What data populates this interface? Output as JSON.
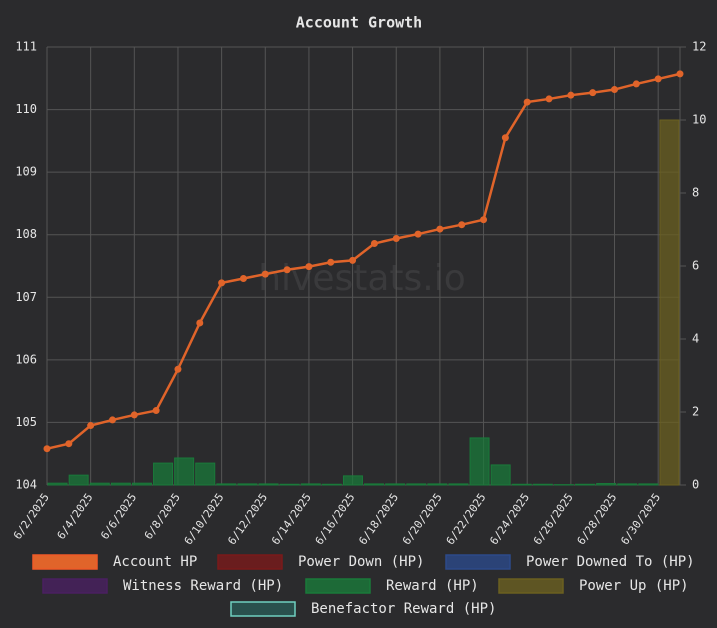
{
  "chart_data": {
    "type": "bar",
    "title": "Account Growth",
    "watermark": "hivestats.io",
    "categories": [
      "6/2/2025",
      null,
      "6/4/2025",
      null,
      "6/6/2025",
      null,
      "6/8/2025",
      null,
      "6/10/2025",
      null,
      "6/12/2025",
      null,
      "6/14/2025",
      null,
      "6/16/2025",
      null,
      "6/18/2025",
      null,
      "6/20/2025",
      null,
      "6/22/2025",
      null,
      "6/24/2025",
      null,
      "6/26/2025",
      null,
      "6/28/2025",
      null,
      "6/30/2025",
      null
    ],
    "ylim": [
      104,
      111
    ],
    "yticks": [
      104,
      105,
      106,
      107,
      108,
      109,
      110,
      111
    ],
    "y2lim": [
      0,
      12
    ],
    "y2ticks": [
      0,
      2,
      4,
      6,
      8,
      10,
      12
    ],
    "grid": true,
    "legend": "bottom",
    "series": [
      {
        "name": "Account HP",
        "type": "line",
        "color": "#e0642a",
        "axis": "y",
        "values": [
          104.58,
          104.66,
          104.95,
          105.04,
          105.12,
          105.19,
          105.85,
          106.59,
          107.23,
          107.3,
          107.37,
          107.44,
          107.49,
          107.56,
          107.59,
          107.86,
          107.94,
          108.01,
          108.09,
          108.16,
          108.24,
          109.55,
          110.12,
          110.17,
          110.23,
          110.27,
          110.32,
          110.41,
          110.49,
          110.57
        ]
      },
      {
        "name": "Power Down (HP)",
        "type": "bar",
        "color": "#7a1a1a",
        "axis": "y2"
      },
      {
        "name": "Power Downed To (HP)",
        "type": "bar",
        "color": "#2c4a8a",
        "axis": "y2"
      },
      {
        "name": "Witness Reward (HP)",
        "type": "bar",
        "color": "#4a2060",
        "axis": "y2"
      },
      {
        "name": "Reward (HP)",
        "type": "bar",
        "color": "#1a7a3a",
        "axis": "y2",
        "values": [
          0.05,
          0.27,
          0.05,
          0.05,
          0.05,
          0.6,
          0.74,
          0.6,
          0.03,
          0.03,
          0.03,
          0.02,
          0.03,
          0.02,
          0.25,
          0.03,
          0.03,
          0.03,
          0.03,
          0.03,
          1.29,
          0.55,
          0.02,
          0.02,
          0.01,
          0.02,
          0.04,
          0.03,
          0.03,
          0
        ]
      },
      {
        "name": "Power Up (HP)",
        "type": "bar",
        "color": "#6b6020",
        "axis": "y2",
        "values": [
          0,
          0,
          0,
          0,
          0,
          0,
          0,
          0,
          0,
          0,
          0,
          0,
          0,
          0,
          0,
          0,
          0,
          0,
          0,
          0,
          0,
          0,
          0,
          0,
          0,
          0,
          0,
          0,
          0,
          10
        ]
      },
      {
        "name": "Benefactor Reward (HP)",
        "type": "bar",
        "color": "#2a5a55",
        "axis": "y2"
      }
    ]
  }
}
